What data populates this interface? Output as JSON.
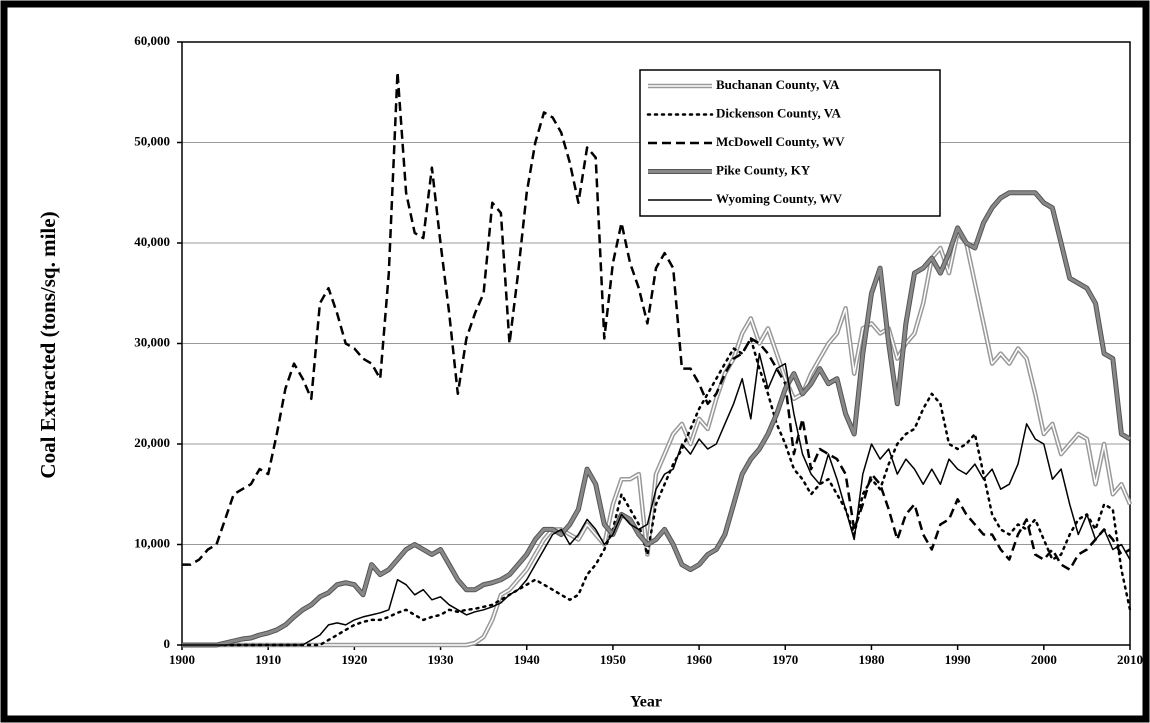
{
  "chart_data": {
    "type": "line",
    "y_label": "Coal Extracted (tons/sq. mile)",
    "x_label": "Year",
    "x": [
      1900,
      1901,
      1902,
      1903,
      1904,
      1905,
      1906,
      1907,
      1908,
      1909,
      1910,
      1911,
      1912,
      1913,
      1914,
      1915,
      1916,
      1917,
      1918,
      1919,
      1920,
      1921,
      1922,
      1923,
      1924,
      1925,
      1926,
      1927,
      1928,
      1929,
      1930,
      1931,
      1932,
      1933,
      1934,
      1935,
      1936,
      1937,
      1938,
      1939,
      1940,
      1941,
      1942,
      1943,
      1944,
      1945,
      1946,
      1947,
      1948,
      1949,
      1950,
      1951,
      1952,
      1953,
      1954,
      1955,
      1956,
      1957,
      1958,
      1959,
      1960,
      1961,
      1962,
      1963,
      1964,
      1965,
      1966,
      1967,
      1968,
      1969,
      1970,
      1971,
      1972,
      1973,
      1974,
      1975,
      1976,
      1977,
      1978,
      1979,
      1980,
      1981,
      1982,
      1983,
      1984,
      1985,
      1986,
      1987,
      1988,
      1989,
      1990,
      1991,
      1992,
      1993,
      1994,
      1995,
      1996,
      1997,
      1998,
      1999,
      2000,
      2001,
      2002,
      2003,
      2004,
      2005,
      2006,
      2007,
      2008,
      2009,
      2010
    ],
    "series": [
      {
        "name": "Buchanan County, VA",
        "color": "#999999",
        "style": "double",
        "values": [
          0,
          0,
          0,
          0,
          0,
          0,
          0,
          0,
          0,
          0,
          0,
          0,
          0,
          0,
          0,
          0,
          0,
          0,
          0,
          0,
          0,
          0,
          0,
          0,
          0,
          0,
          0,
          0,
          0,
          0,
          0,
          0,
          0,
          0,
          200,
          800,
          2500,
          5000,
          5500,
          6500,
          7500,
          9000,
          10500,
          11500,
          11500,
          11000,
          10500,
          12000,
          11000,
          10000,
          14000,
          16500,
          16500,
          17000,
          9000,
          17000,
          19000,
          21000,
          22000,
          20000,
          22500,
          21500,
          24500,
          27000,
          28500,
          31000,
          32500,
          30000,
          31500,
          29000,
          26500,
          24500,
          25000,
          27000,
          28500,
          30000,
          31000,
          33500,
          27000,
          31500,
          32000,
          31000,
          31500,
          28500,
          30000,
          31000,
          34000,
          38500,
          39500,
          37000,
          41000,
          40000,
          36000,
          32000,
          28000,
          29000,
          28000,
          29500,
          28500,
          25000,
          21000,
          22000,
          19000,
          20000,
          21000,
          20500,
          16000,
          20000,
          15000,
          16000,
          14000
        ]
      },
      {
        "name": "Dickenson County, VA",
        "color": "#000000",
        "style": "dotted",
        "values": [
          0,
          0,
          0,
          0,
          0,
          0,
          0,
          0,
          0,
          0,
          0,
          0,
          0,
          0,
          0,
          0,
          0,
          500,
          1000,
          1500,
          2000,
          2300,
          2500,
          2500,
          2800,
          3200,
          3500,
          3000,
          2500,
          2800,
          3000,
          3500,
          3300,
          3500,
          3600,
          3800,
          4000,
          4500,
          5000,
          5500,
          6000,
          6500,
          6000,
          5500,
          5000,
          4500,
          5000,
          7000,
          8000,
          9500,
          11500,
          15000,
          13500,
          12000,
          9000,
          14000,
          16000,
          18000,
          19500,
          21500,
          23500,
          25000,
          26500,
          28000,
          29500,
          29000,
          30500,
          27500,
          25000,
          22000,
          20000,
          17500,
          16500,
          15000,
          16000,
          16500,
          15000,
          13500,
          11000,
          15000,
          16500,
          15500,
          18000,
          20000,
          21000,
          21500,
          23500,
          25000,
          24000,
          20000,
          19500,
          20000,
          21000,
          17000,
          13000,
          11500,
          11000,
          12000,
          11500,
          12500,
          10500,
          8500,
          9000,
          11000,
          12500,
          13000,
          11500,
          14000,
          13500,
          7500,
          3500
        ]
      },
      {
        "name": "McDowell County, WV",
        "color": "#000000",
        "style": "dashed",
        "values": [
          8000,
          8000,
          8500,
          9500,
          10000,
          12500,
          15000,
          15500,
          16000,
          17500,
          17000,
          21000,
          25500,
          28000,
          26500,
          24500,
          34000,
          35500,
          33000,
          30000,
          29500,
          28500,
          28000,
          26500,
          37000,
          57000,
          45000,
          41000,
          40500,
          47500,
          40000,
          33000,
          25000,
          30500,
          33000,
          35000,
          44000,
          43000,
          30000,
          37000,
          45000,
          50000,
          53000,
          52500,
          51000,
          48000,
          44000,
          49500,
          48500,
          30500,
          38000,
          42000,
          38000,
          35500,
          32000,
          37500,
          39000,
          37500,
          27500,
          27500,
          26000,
          24000,
          25000,
          27000,
          28500,
          29000,
          30500,
          30000,
          29000,
          27500,
          26000,
          19000,
          22500,
          17500,
          19500,
          19000,
          18500,
          17000,
          11500,
          14000,
          17000,
          16000,
          13500,
          10500,
          13000,
          14000,
          11000,
          9500,
          12000,
          12500,
          14500,
          13000,
          12000,
          11000,
          11000,
          9500,
          8500,
          11000,
          12500,
          9000,
          8500,
          9500,
          8000,
          7500,
          9000,
          9500,
          10500,
          11500,
          10500,
          9000,
          9500
        ]
      },
      {
        "name": "Pike County, KY",
        "color": "#888888",
        "style": "thick",
        "values": [
          0,
          0,
          0,
          0,
          0,
          200,
          400,
          600,
          700,
          1000,
          1200,
          1500,
          2000,
          2800,
          3500,
          4000,
          4800,
          5200,
          6000,
          6200,
          6000,
          5000,
          8000,
          7000,
          7500,
          8500,
          9500,
          10000,
          9500,
          9000,
          9500,
          8000,
          6500,
          5500,
          5500,
          6000,
          6200,
          6500,
          7000,
          8000,
          9000,
          10500,
          11500,
          11500,
          11000,
          12000,
          13500,
          17500,
          16000,
          12000,
          11000,
          13000,
          12500,
          11000,
          10000,
          10500,
          11500,
          10000,
          8000,
          7500,
          8000,
          9000,
          9500,
          11000,
          14000,
          17000,
          18500,
          19500,
          21000,
          23000,
          25500,
          27000,
          25000,
          26000,
          27500,
          26000,
          26500,
          23000,
          21000,
          29000,
          35000,
          37500,
          30000,
          24000,
          32000,
          37000,
          37500,
          38500,
          37000,
          39000,
          41500,
          40000,
          39500,
          42000,
          43500,
          44500,
          45000,
          45000,
          45000,
          45000,
          44000,
          43500,
          40000,
          36500,
          36000,
          35500,
          34000,
          29000,
          28500,
          21000,
          20500
        ]
      },
      {
        "name": "Wyoming County, WV",
        "color": "#000000",
        "style": "solid",
        "values": [
          0,
          0,
          0,
          0,
          0,
          0,
          0,
          0,
          0,
          0,
          0,
          0,
          0,
          0,
          0,
          500,
          1000,
          2000,
          2200,
          2000,
          2500,
          2800,
          3000,
          3200,
          3500,
          6500,
          6000,
          5000,
          5500,
          4500,
          4800,
          4000,
          3500,
          3000,
          3300,
          3500,
          3800,
          4200,
          5000,
          5500,
          6500,
          8000,
          9500,
          11000,
          11500,
          10000,
          11000,
          12500,
          11500,
          10000,
          11000,
          13000,
          12000,
          11500,
          12000,
          15500,
          17000,
          17500,
          20000,
          19000,
          20500,
          19500,
          20000,
          22000,
          24000,
          26500,
          22500,
          29000,
          25500,
          27500,
          28000,
          23000,
          19000,
          17000,
          16000,
          19000,
          16500,
          13500,
          10500,
          17000,
          20000,
          18500,
          19500,
          17000,
          18500,
          17500,
          16000,
          17500,
          16000,
          18500,
          17500,
          17000,
          18000,
          16500,
          17500,
          15500,
          16000,
          18000,
          22000,
          20500,
          20000,
          16500,
          17500,
          14000,
          11000,
          13000,
          10500,
          11500,
          9500,
          10000,
          8500
        ]
      }
    ],
    "xlim": [
      1900,
      2010
    ],
    "xticks": [
      1900,
      1910,
      1920,
      1930,
      1940,
      1950,
      1960,
      1970,
      1980,
      1990,
      2000,
      2010
    ],
    "ylim": [
      0,
      60000
    ],
    "yticks": [
      0,
      {
        "value": 10000,
        "label": "10,000"
      },
      {
        "value": 20000,
        "label": "20,000"
      },
      {
        "value": 30000,
        "label": "30,000"
      },
      {
        "value": 40000,
        "label": "40,000"
      },
      {
        "value": 50000,
        "label": "50,000"
      },
      {
        "value": 60000,
        "label": "60,000"
      }
    ],
    "grid": true,
    "legend": "upper right"
  }
}
